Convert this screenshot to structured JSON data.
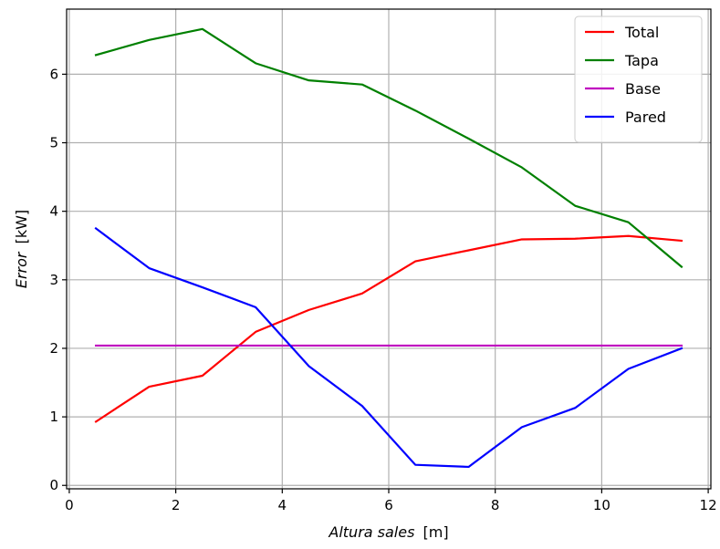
{
  "chart_data": {
    "type": "line",
    "xlabel": {
      "italic": "Altura sales",
      "unit": "[m]"
    },
    "ylabel": {
      "italic": "Error",
      "unit": "[kW]"
    },
    "xlim": [
      -0.05,
      12.05
    ],
    "ylim": [
      -0.05,
      6.95
    ],
    "xticks": [
      0,
      2,
      4,
      6,
      8,
      10,
      12
    ],
    "yticks": [
      0,
      1,
      2,
      3,
      4,
      5,
      6
    ],
    "grid": true,
    "legend_position": "top-right",
    "x": [
      0.5,
      1.5,
      2.5,
      3.5,
      4.5,
      5.5,
      6.5,
      7.5,
      8.5,
      9.5,
      10.5,
      11.5
    ],
    "series": [
      {
        "name": "Total",
        "color": "#ff0000",
        "values": [
          0.93,
          1.44,
          1.6,
          2.24,
          2.56,
          2.8,
          3.27,
          3.43,
          3.59,
          3.6,
          3.64,
          3.57
        ]
      },
      {
        "name": "Tapa",
        "color": "#008000",
        "values": [
          6.28,
          6.5,
          6.66,
          6.16,
          5.91,
          5.85,
          5.47,
          5.06,
          4.64,
          4.08,
          3.84,
          3.19
        ]
      },
      {
        "name": "Base",
        "color": "#bf00bf",
        "values": [
          2.04,
          2.04,
          2.04,
          2.04,
          2.04,
          2.04,
          2.04,
          2.04,
          2.04,
          2.04,
          2.04,
          2.04
        ]
      },
      {
        "name": "Pared",
        "color": "#0000ff",
        "values": [
          3.75,
          3.17,
          2.89,
          2.6,
          1.74,
          1.16,
          0.3,
          0.27,
          0.85,
          1.13,
          1.7,
          2.0
        ]
      }
    ]
  }
}
